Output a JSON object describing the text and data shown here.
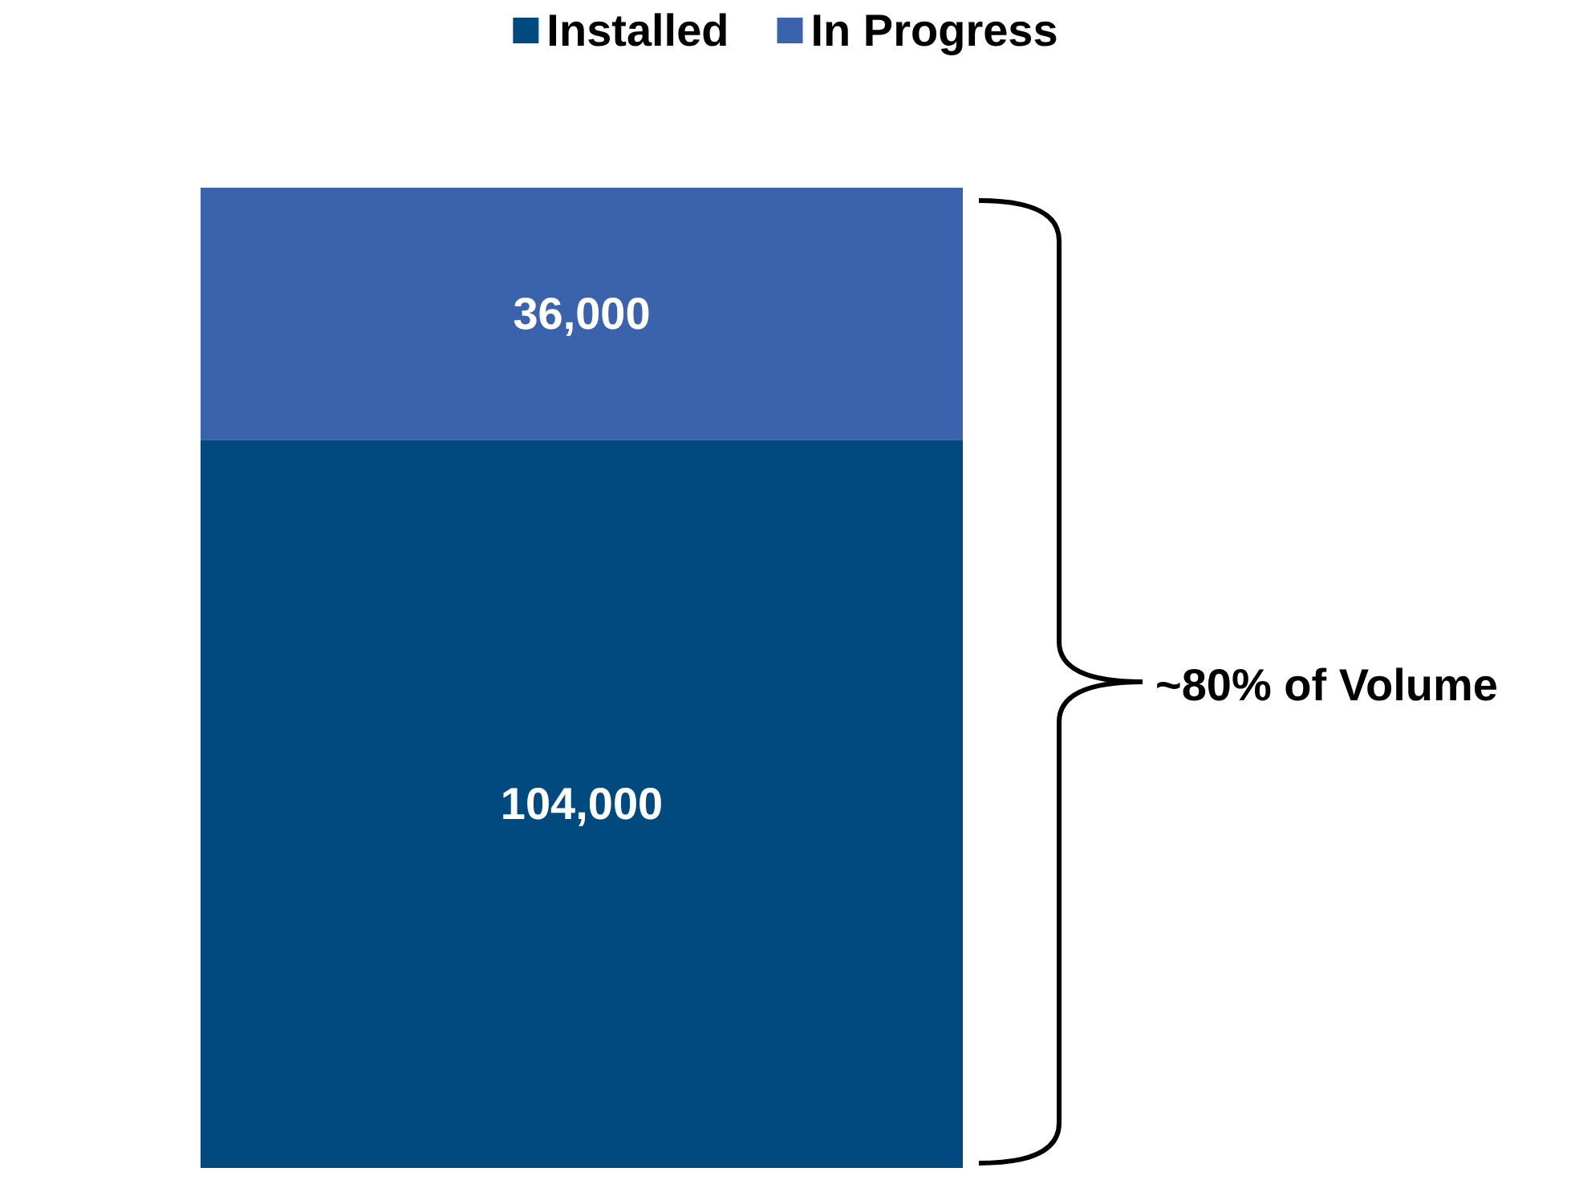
{
  "chart_data": {
    "type": "bar",
    "stacked": true,
    "categories": [
      null
    ],
    "series": [
      {
        "name": "Installed",
        "color": "#004a80",
        "values": [
          104000
        ],
        "value_labels": [
          "104,000"
        ]
      },
      {
        "name": "In Progress",
        "color": "#3a62ad",
        "values": [
          36000
        ],
        "value_labels": [
          "36,000"
        ]
      }
    ],
    "legend": "top",
    "annotations": [
      "~80% of Volume"
    ]
  }
}
